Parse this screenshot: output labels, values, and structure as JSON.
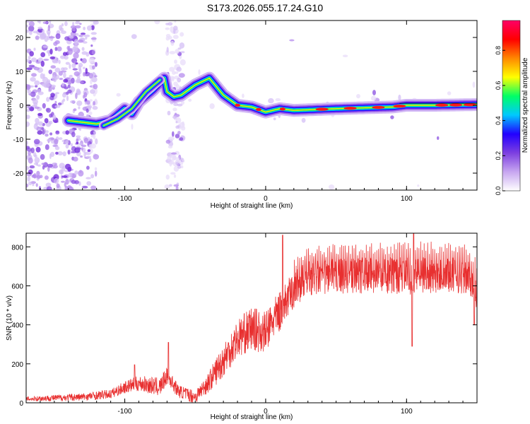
{
  "title": "S173.2026.055.17.24.G10",
  "chart_data": [
    {
      "type": "heatmap",
      "xlabel": "Height of straight line (km)",
      "ylabel": "Frequency (Hz)",
      "xlim": [
        -170,
        150
      ],
      "ylim": [
        -25,
        25
      ],
      "x_ticks": [
        -100,
        0,
        100
      ],
      "x_tick_labels": [
        "-100",
        "0",
        "100"
      ],
      "y_ticks": [
        -20,
        -10,
        0,
        10,
        20
      ],
      "y_tick_labels": [
        "-20",
        "-10",
        "0",
        "10",
        "20"
      ],
      "ridge": {
        "x": [
          -140,
          -120,
          -110,
          -100,
          -95,
          -90,
          -80,
          -72,
          -70,
          -65,
          -60,
          -50,
          -40,
          -30,
          -20,
          -10,
          0,
          10,
          20,
          50,
          90,
          100,
          120,
          150
        ],
        "y": [
          -4.5,
          -5.5,
          -4.5,
          -1,
          -2.5,
          1,
          4.5,
          8,
          4,
          2.5,
          3,
          6,
          8,
          3,
          0,
          -0.5,
          -2,
          -1,
          -1.5,
          -1,
          -0.5,
          0,
          0,
          0.2
        ]
      },
      "ridge2": {
        "x": [
          -115,
          -105,
          -95,
          -85,
          -75
        ],
        "y": [
          -6,
          -4,
          -1,
          4,
          7.5
        ]
      },
      "colorbar": {
        "label": "Normalized spectral amplitude",
        "ticks": [
          0.0,
          0.2,
          0.4,
          0.6,
          0.8
        ],
        "tick_labels": [
          "0.0",
          "0.2",
          "0.4",
          "0.6",
          "0.8"
        ],
        "range": [
          0,
          0.97
        ],
        "colors": [
          "#ffffff",
          "#c7a6f0",
          "#7d3fe0",
          "#2200ff",
          "#00c8ff",
          "#00ff66",
          "#ffff00",
          "#ff8800",
          "#ff0000",
          "#ff0066"
        ]
      }
    },
    {
      "type": "line",
      "xlabel": "Height of straight line (km)",
      "ylabel": "SNR (10 * v/v)",
      "xlim": [
        -170,
        150
      ],
      "ylim": [
        0,
        870
      ],
      "x_ticks": [
        -100,
        0,
        100
      ],
      "x_tick_labels": [
        "-100",
        "0",
        "100"
      ],
      "y_ticks": [
        0,
        200,
        400,
        600,
        800
      ],
      "y_tick_labels": [
        "0",
        "200",
        "400",
        "600",
        "800"
      ],
      "color": "#e83030",
      "trend": {
        "x": [
          -170,
          -130,
          -110,
          -100,
          -90,
          -75,
          -70,
          -62,
          -50,
          -40,
          -30,
          -20,
          -10,
          0,
          5,
          10,
          20,
          30,
          50,
          80,
          100,
          130,
          145,
          150
        ],
        "y": [
          20,
          30,
          45,
          80,
          100,
          80,
          140,
          60,
          30,
          110,
          220,
          330,
          380,
          360,
          420,
          470,
          580,
          640,
          650,
          655,
          650,
          660,
          640,
          560
        ]
      },
      "amplitude": {
        "x": [
          -170,
          -110,
          -90,
          -75,
          -60,
          -45,
          -30,
          -10,
          10,
          30,
          100,
          150
        ],
        "y": [
          15,
          30,
          50,
          60,
          40,
          50,
          110,
          140,
          130,
          110,
          120,
          110
        ]
      },
      "spikes": [
        {
          "x": -93,
          "y": 195
        },
        {
          "x": -69,
          "y": 310
        },
        {
          "x": 12,
          "y": 860
        },
        {
          "x": 104,
          "y": 290
        },
        {
          "x": 105,
          "y": 870
        },
        {
          "x": 148,
          "y": 400
        }
      ]
    }
  ]
}
